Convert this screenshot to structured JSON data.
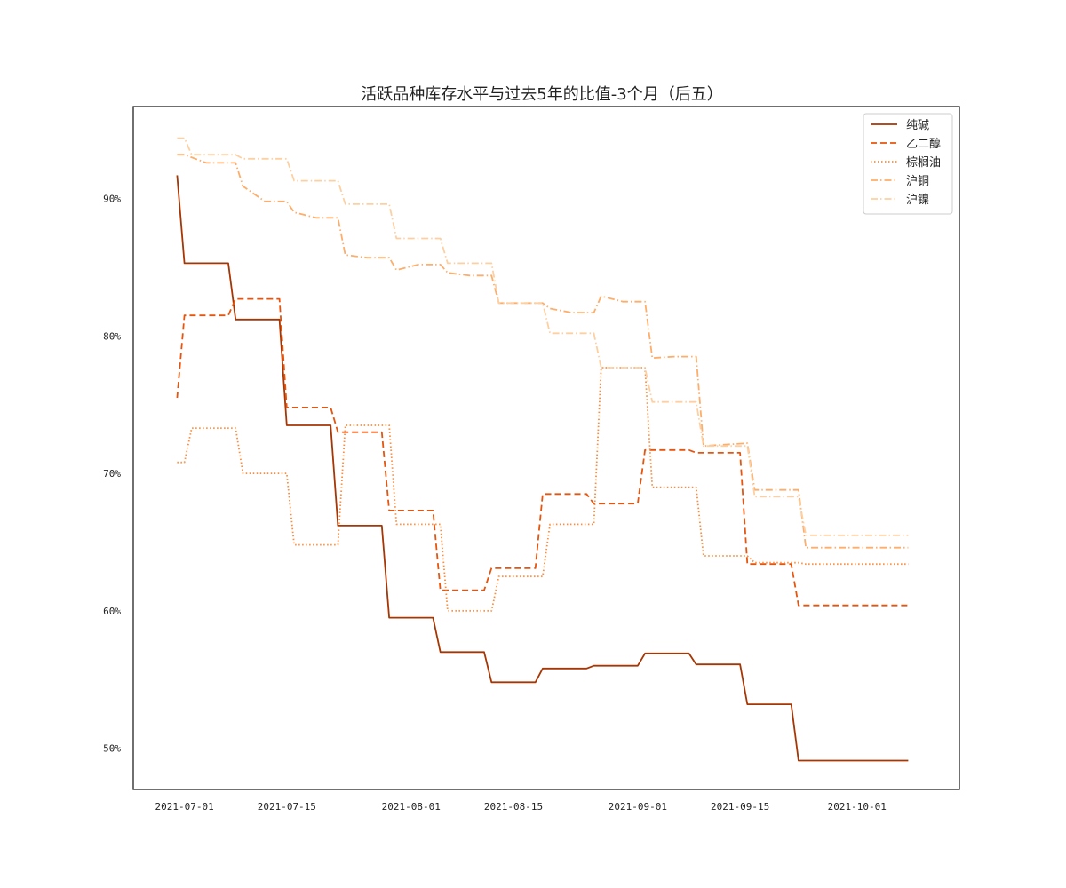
{
  "chart_data": {
    "type": "line",
    "title": "活跃品种库存水平与过去5年的比值-3个月（后五）",
    "xlabel": "",
    "ylabel": "",
    "x_type": "date",
    "xlim": [
      "2021-06-24",
      "2021-10-15"
    ],
    "ylim": [
      0.47,
      0.967
    ],
    "y_ticks": [
      0.5,
      0.6,
      0.7,
      0.8,
      0.9
    ],
    "y_tick_labels": [
      "50%",
      "60%",
      "70%",
      "80%",
      "90%"
    ],
    "x_ticks": [
      "2021-07-01",
      "2021-07-15",
      "2021-08-01",
      "2021-08-15",
      "2021-09-01",
      "2021-09-15",
      "2021-10-01"
    ],
    "x_tick_labels": [
      "2021-07-01",
      "2021-07-15",
      "2021-08-01",
      "2021-08-15",
      "2021-09-01",
      "2021-09-15",
      "2021-10-01"
    ],
    "grid": false,
    "legend_position": "top-right",
    "series": [
      {
        "name": "纯碱",
        "color": "#a63603",
        "dash": "solid",
        "x": [
          "2021-06-30",
          "2021-07-01",
          "2021-07-07",
          "2021-07-08",
          "2021-07-14",
          "2021-07-15",
          "2021-07-21",
          "2021-07-22",
          "2021-07-28",
          "2021-07-29",
          "2021-08-04",
          "2021-08-05",
          "2021-08-11",
          "2021-08-12",
          "2021-08-18",
          "2021-08-19",
          "2021-08-25",
          "2021-08-26",
          "2021-09-01",
          "2021-09-02",
          "2021-09-08",
          "2021-09-09",
          "2021-09-15",
          "2021-09-16",
          "2021-09-22",
          "2021-09-23",
          "2021-10-08"
        ],
        "y": [
          0.917,
          0.853,
          0.853,
          0.812,
          0.812,
          0.735,
          0.735,
          0.662,
          0.662,
          0.595,
          0.595,
          0.57,
          0.57,
          0.548,
          0.548,
          0.558,
          0.558,
          0.56,
          0.56,
          0.569,
          0.569,
          0.561,
          0.561,
          0.532,
          0.532,
          0.491,
          0.491
        ]
      },
      {
        "name": "乙二醇",
        "color": "#e6550d",
        "dash": "dashed",
        "x": [
          "2021-06-30",
          "2021-07-01",
          "2021-07-07",
          "2021-07-08",
          "2021-07-14",
          "2021-07-15",
          "2021-07-21",
          "2021-07-22",
          "2021-07-28",
          "2021-07-29",
          "2021-08-04",
          "2021-08-05",
          "2021-08-11",
          "2021-08-12",
          "2021-08-18",
          "2021-08-19",
          "2021-08-25",
          "2021-08-26",
          "2021-09-01",
          "2021-09-02",
          "2021-09-08",
          "2021-09-09",
          "2021-09-15",
          "2021-09-16",
          "2021-09-22",
          "2021-09-23",
          "2021-10-08"
        ],
        "y": [
          0.755,
          0.815,
          0.815,
          0.827,
          0.827,
          0.748,
          0.748,
          0.73,
          0.73,
          0.673,
          0.673,
          0.615,
          0.615,
          0.631,
          0.631,
          0.685,
          0.685,
          0.678,
          0.678,
          0.717,
          0.717,
          0.715,
          0.715,
          0.634,
          0.634,
          0.604,
          0.604
        ]
      },
      {
        "name": "棕榈油",
        "color": "#fd8d3c",
        "dash": "dotted",
        "x": [
          "2021-06-30",
          "2021-07-01",
          "2021-07-02",
          "2021-07-08",
          "2021-07-09",
          "2021-07-15",
          "2021-07-16",
          "2021-07-22",
          "2021-07-23",
          "2021-07-29",
          "2021-07-30",
          "2021-08-05",
          "2021-08-06",
          "2021-08-12",
          "2021-08-13",
          "2021-08-19",
          "2021-08-20",
          "2021-08-26",
          "2021-08-27",
          "2021-09-02",
          "2021-09-03",
          "2021-09-09",
          "2021-09-10",
          "2021-09-16",
          "2021-09-17",
          "2021-09-23",
          "2021-09-24",
          "2021-10-08"
        ],
        "y": [
          0.708,
          0.708,
          0.733,
          0.733,
          0.7,
          0.7,
          0.648,
          0.648,
          0.735,
          0.735,
          0.663,
          0.663,
          0.6,
          0.6,
          0.625,
          0.625,
          0.663,
          0.663,
          0.777,
          0.777,
          0.69,
          0.69,
          0.64,
          0.64,
          0.635,
          0.635,
          0.634,
          0.634
        ]
      },
      {
        "name": "沪铜",
        "color": "#fdae6b",
        "dash": "dashdot",
        "x": [
          "2021-06-30",
          "2021-07-01",
          "2021-07-04",
          "2021-07-08",
          "2021-07-09",
          "2021-07-12",
          "2021-07-15",
          "2021-07-16",
          "2021-07-19",
          "2021-07-22",
          "2021-07-23",
          "2021-07-26",
          "2021-07-29",
          "2021-07-30",
          "2021-08-02",
          "2021-08-05",
          "2021-08-06",
          "2021-08-09",
          "2021-08-12",
          "2021-08-13",
          "2021-08-19",
          "2021-08-20",
          "2021-08-23",
          "2021-08-26",
          "2021-08-27",
          "2021-08-30",
          "2021-09-02",
          "2021-09-03",
          "2021-09-06",
          "2021-09-09",
          "2021-09-10",
          "2021-09-16",
          "2021-09-17",
          "2021-09-23",
          "2021-09-24",
          "2021-10-08"
        ],
        "y": [
          0.932,
          0.932,
          0.926,
          0.926,
          0.909,
          0.898,
          0.898,
          0.89,
          0.886,
          0.886,
          0.859,
          0.857,
          0.857,
          0.848,
          0.852,
          0.852,
          0.846,
          0.844,
          0.844,
          0.824,
          0.824,
          0.82,
          0.817,
          0.817,
          0.829,
          0.825,
          0.825,
          0.784,
          0.785,
          0.785,
          0.72,
          0.722,
          0.688,
          0.688,
          0.646,
          0.646
        ]
      },
      {
        "name": "沪镍",
        "color": "#fdd0a2",
        "dash": "dashdot",
        "x": [
          "2021-06-30",
          "2021-07-01",
          "2021-07-02",
          "2021-07-08",
          "2021-07-09",
          "2021-07-15",
          "2021-07-16",
          "2021-07-22",
          "2021-07-23",
          "2021-07-29",
          "2021-07-30",
          "2021-08-05",
          "2021-08-06",
          "2021-08-12",
          "2021-08-13",
          "2021-08-19",
          "2021-08-20",
          "2021-08-26",
          "2021-08-27",
          "2021-09-02",
          "2021-09-03",
          "2021-09-09",
          "2021-09-10",
          "2021-09-16",
          "2021-09-17",
          "2021-09-23",
          "2021-09-24",
          "2021-10-08"
        ],
        "y": [
          0.944,
          0.944,
          0.932,
          0.932,
          0.929,
          0.929,
          0.913,
          0.913,
          0.896,
          0.896,
          0.871,
          0.871,
          0.853,
          0.853,
          0.824,
          0.824,
          0.802,
          0.802,
          0.777,
          0.777,
          0.752,
          0.752,
          0.72,
          0.72,
          0.683,
          0.683,
          0.655,
          0.655
        ]
      }
    ]
  }
}
